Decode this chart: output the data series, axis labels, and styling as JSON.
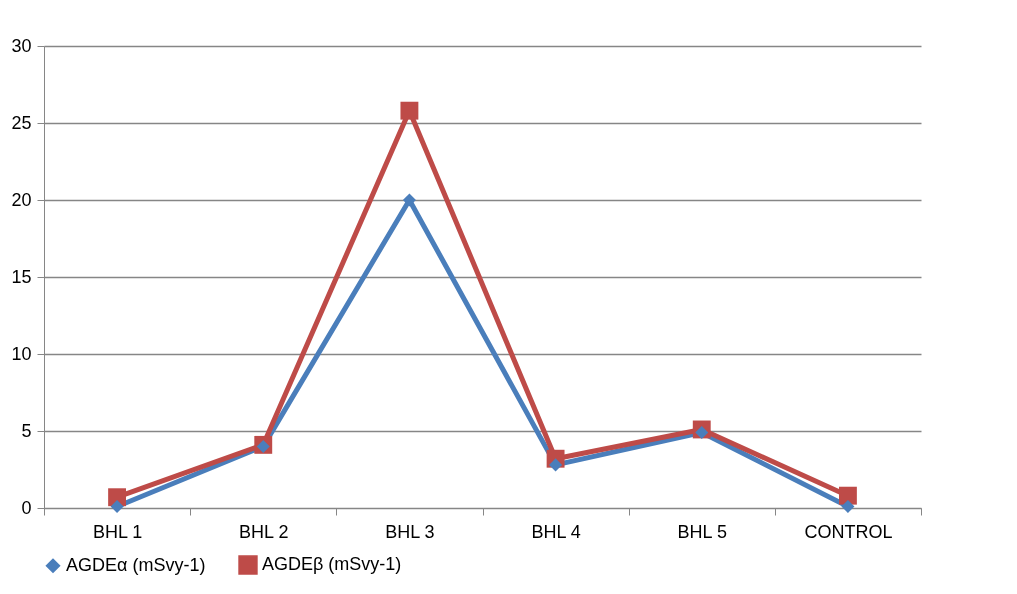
{
  "chart_data": {
    "type": "line",
    "categories": [
      "BHL 1",
      "BHL 2",
      "BHL 3",
      "BHL 4",
      "BHL 5",
      "CONTROL"
    ],
    "series": [
      {
        "name": "AGDEα (mSvy-1)",
        "color": "#4a7ebb",
        "marker": "diamond",
        "values": [
          0.1,
          4.0,
          20.0,
          2.8,
          4.9,
          0.1
        ]
      },
      {
        "name": "AGDEβ (mSvy-1)",
        "color": "#be4b48",
        "marker": "square",
        "values": [
          0.7,
          4.1,
          25.8,
          3.2,
          5.1,
          0.8
        ]
      }
    ],
    "ylim": [
      0,
      30
    ],
    "yticks": [
      0,
      5,
      10,
      15,
      20,
      25,
      30
    ],
    "grid": "y",
    "legend": "bottom",
    "line_style": "solid"
  }
}
